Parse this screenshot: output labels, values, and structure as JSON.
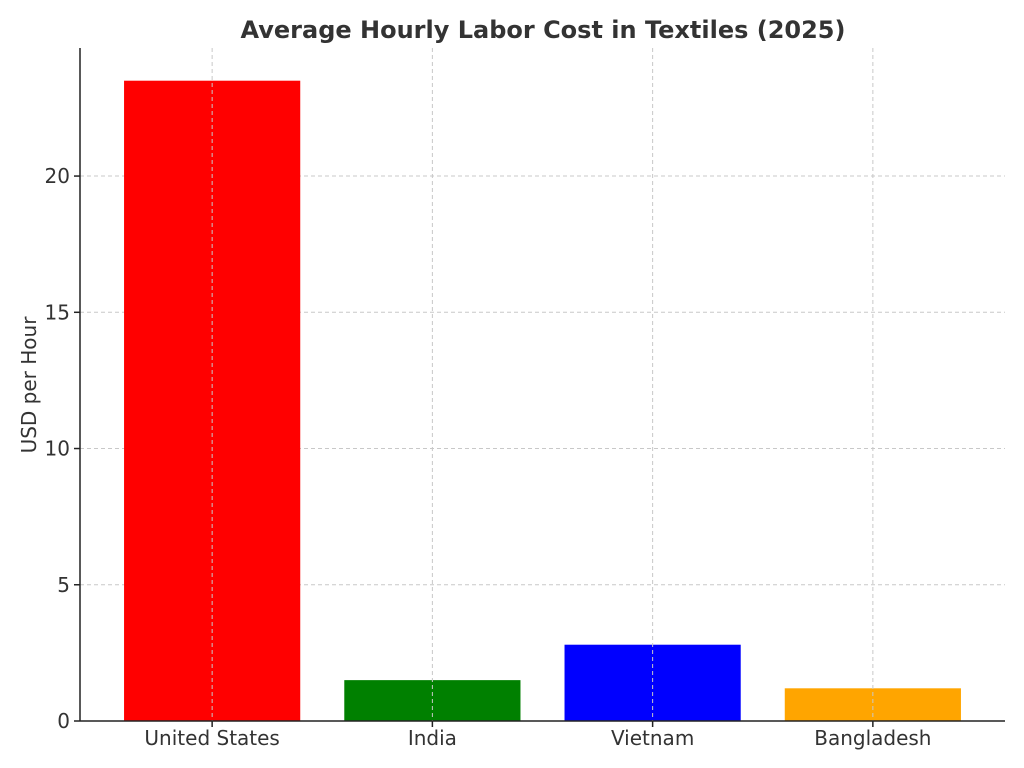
{
  "chart_data": {
    "type": "bar",
    "title": "Average Hourly Labor Cost in Textiles (2025)",
    "xlabel": "",
    "ylabel": "USD per Hour",
    "categories": [
      "United States",
      "India",
      "Vietnam",
      "Bangladesh"
    ],
    "values": [
      23.5,
      1.5,
      2.8,
      1.2
    ],
    "bar_colors": [
      "#ff0000",
      "#008000",
      "#0000ff",
      "#ffa500"
    ],
    "yticks": [
      0,
      5,
      10,
      15,
      20
    ],
    "ylim": [
      0,
      24.7
    ],
    "grid": true,
    "legend": "none"
  }
}
